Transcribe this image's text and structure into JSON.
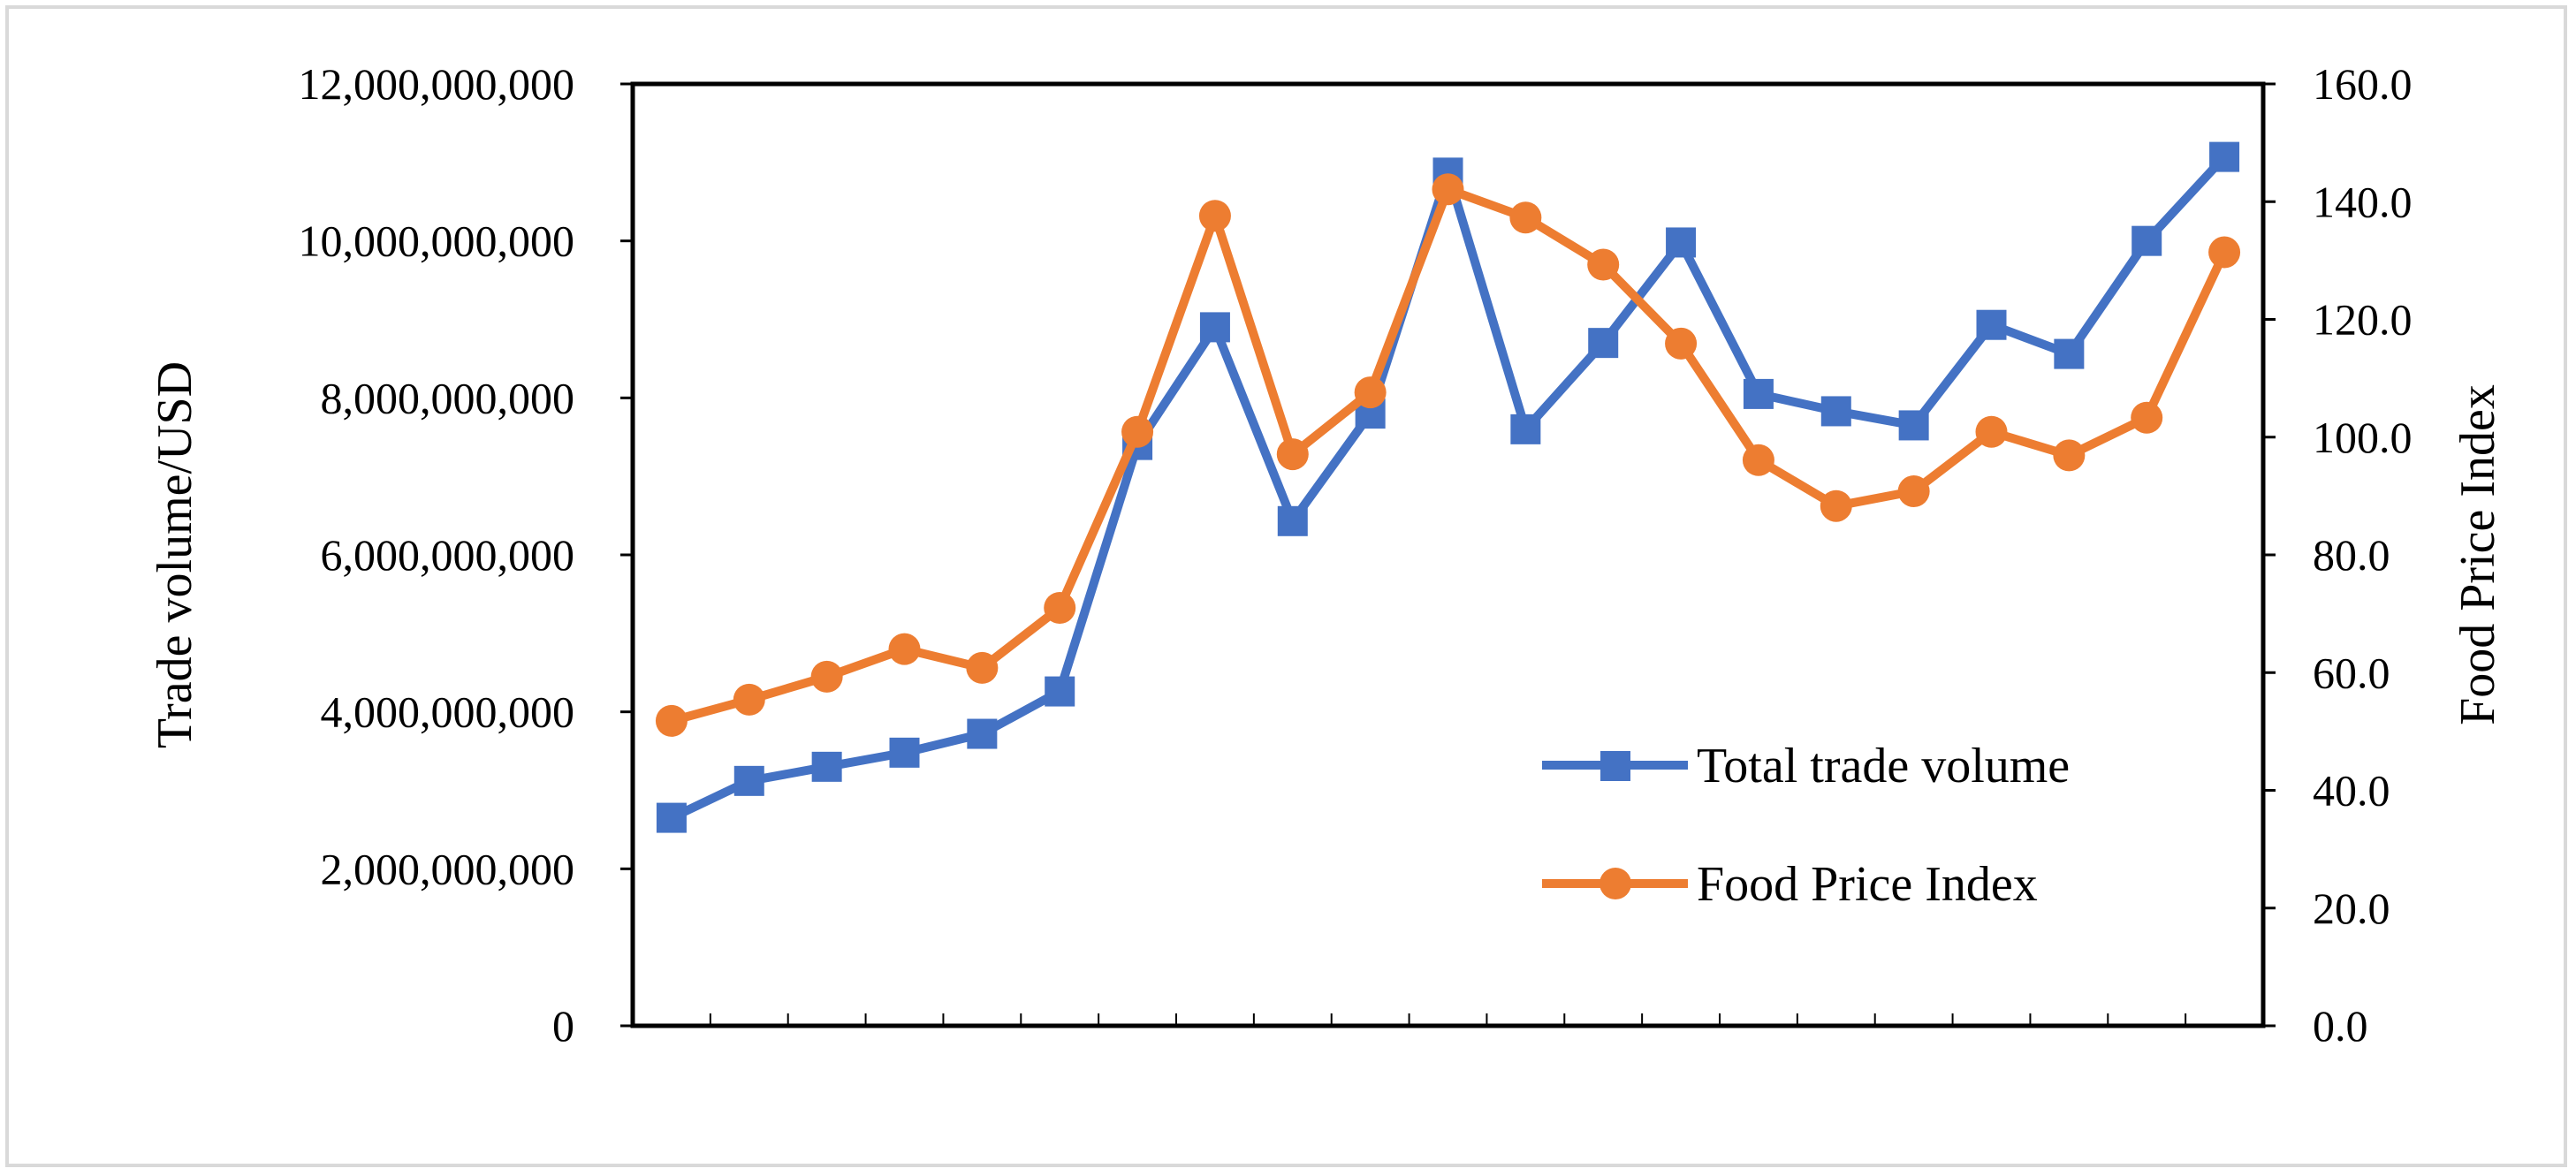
{
  "chart_data": {
    "type": "line",
    "y_left": {
      "label": "Trade volume/USD",
      "ylim": [
        0,
        12000000000
      ],
      "ticks": [
        0,
        2000000000,
        4000000000,
        6000000000,
        8000000000,
        10000000000,
        12000000000
      ],
      "tick_labels": [
        "0",
        "2,000,000,000",
        "4,000,000,000",
        "6,000,000,000",
        "8,000,000,000",
        "10,000,000,000",
        "12,000,000,000"
      ]
    },
    "y_right": {
      "label": "Food  Price Index",
      "ylim": [
        0,
        160
      ],
      "ticks": [
        0,
        20,
        40,
        60,
        80,
        100,
        120,
        140,
        160
      ],
      "tick_labels": [
        "0.0",
        "20.0",
        "40.0",
        "60.0",
        "80.0",
        "100.0",
        "120.0",
        "140.0",
        "160.0"
      ]
    },
    "x_count": 21,
    "grid": false,
    "legend_position": "lower-right",
    "series": [
      {
        "name": "Total trade volume",
        "axis": "left",
        "marker": "square",
        "color": "#4472C4",
        "values": [
          2650000000,
          3120000000,
          3300000000,
          3480000000,
          3720000000,
          4260000000,
          7400000000,
          8900000000,
          6430000000,
          7800000000,
          10870000000,
          7600000000,
          8700000000,
          9980000000,
          8050000000,
          7830000000,
          7650000000,
          8930000000,
          8560000000,
          10000000000,
          11070000000
        ]
      },
      {
        "name": "Food Price Index",
        "axis": "right",
        "marker": "circle",
        "color": "#ED7D31",
        "values": [
          51.8,
          55.4,
          59.3,
          64.0,
          60.8,
          71.0,
          100.9,
          137.6,
          97.1,
          107.6,
          142.1,
          137.3,
          129.3,
          115.9,
          96.1,
          88.3,
          90.8,
          100.9,
          96.9,
          103.3,
          131.4
        ]
      }
    ]
  }
}
